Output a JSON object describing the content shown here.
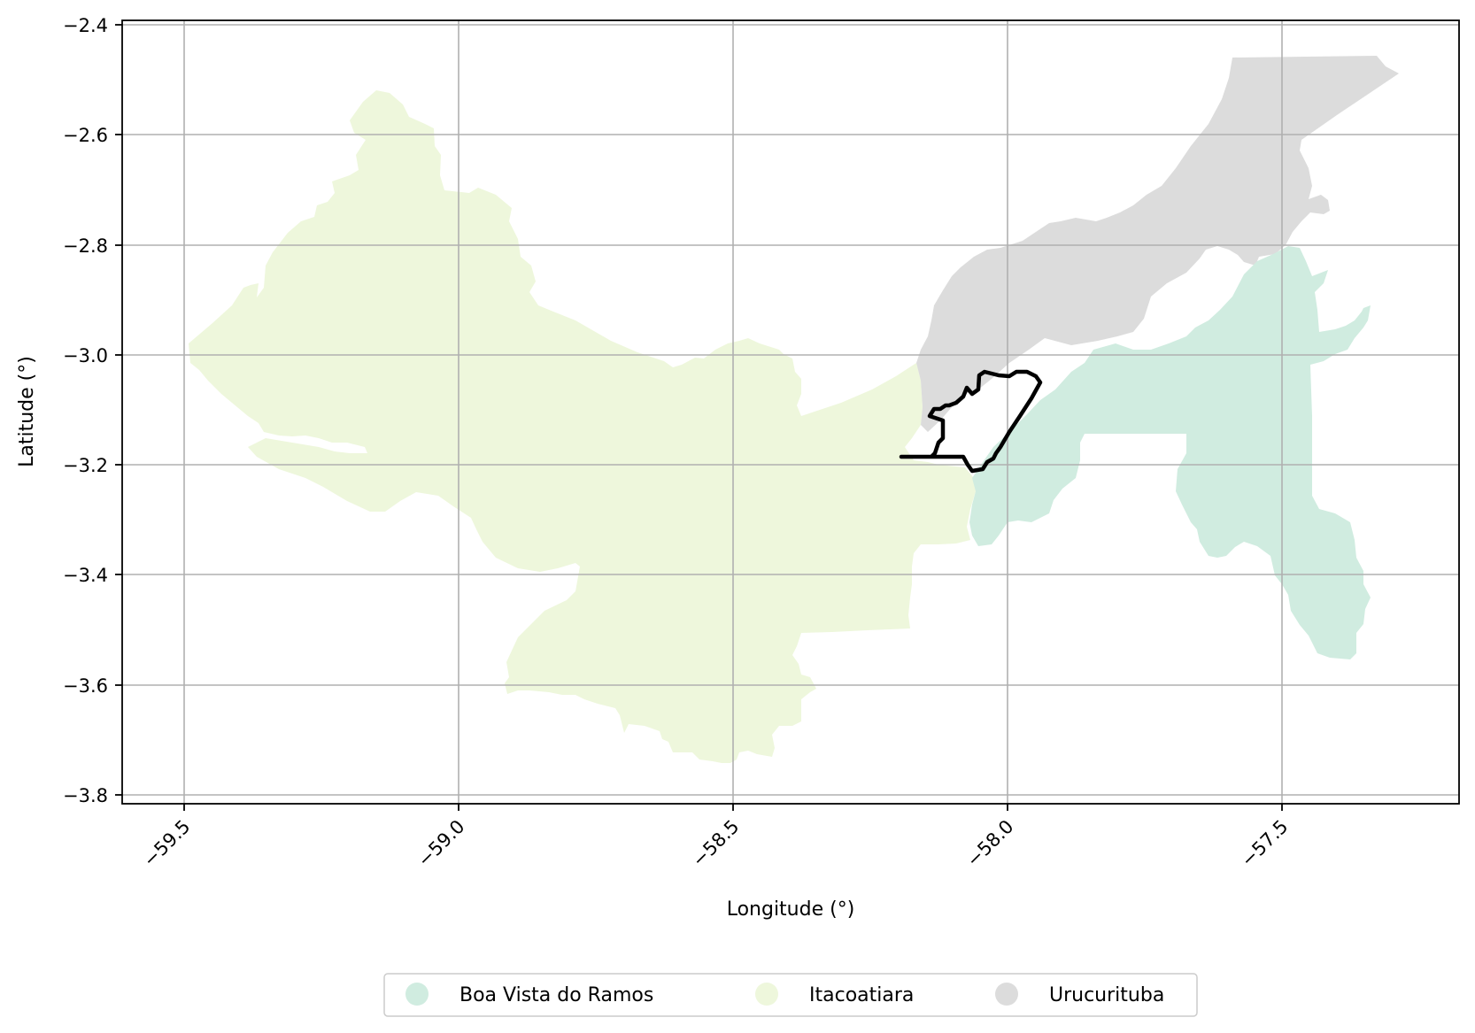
{
  "map": {
    "xlabel": "Longitude (°)",
    "ylabel": "Latitude (°)",
    "x_ticks": [
      "−59.5",
      "−59.0",
      "−58.5",
      "−58.0",
      "−57.5"
    ],
    "y_ticks": [
      "−2.4",
      "−2.6",
      "−2.8",
      "−3.0",
      "−3.2",
      "−3.4",
      "−3.6",
      "−3.8"
    ],
    "grid": true,
    "legend_position": "bottom-center",
    "highlighted_region_outline": "black",
    "regions": [
      {
        "name": "Boa Vista do Ramos",
        "color": "#d0ece0"
      },
      {
        "name": "Itacoatiara",
        "color": "#eef7dc"
      },
      {
        "name": "Urucurituba",
        "color": "#dcdcdc"
      }
    ]
  }
}
